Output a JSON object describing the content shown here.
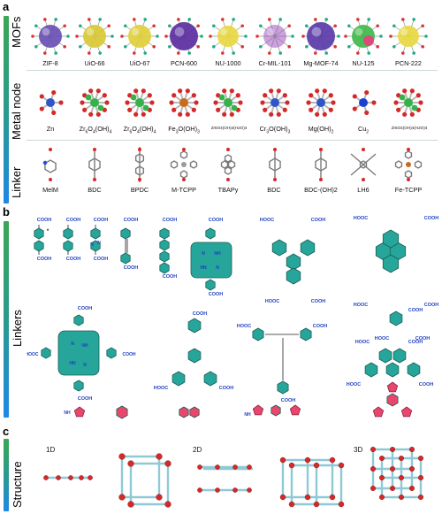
{
  "panels": {
    "a": {
      "letter": "a",
      "rows": [
        {
          "label": "MOFs"
        },
        {
          "label": "Metal node"
        },
        {
          "label": "Linker"
        }
      ]
    },
    "b": {
      "letter": "b",
      "label": "Linkers"
    },
    "c": {
      "letter": "c",
      "label": "Structure"
    }
  },
  "mofs": [
    "ZIF-8",
    "UiO-66",
    "UiO-67",
    "PCN-600",
    "NU-1000",
    "Cr-MIL-101",
    "Mg-MOF-74",
    "NU-125",
    "PCN-222"
  ],
  "metal_nodes": [
    {
      "main": "Zn",
      "sub1": "",
      "mid": "",
      "sub2": "",
      "tail": ""
    },
    {
      "main": "Zr",
      "sub1": "6",
      "mid": "O",
      "sub2": "4",
      "tail": "(OH)"
    },
    {
      "main": "Zr",
      "sub1": "6",
      "mid": "O",
      "sub2": "4",
      "tail": "(OH)"
    },
    {
      "main": "Fe",
      "sub1": "3",
      "mid": "O(OH)",
      "sub2": "3",
      "tail": ""
    },
    {
      "main": "Zr6O4(OH)4(H2O)4",
      "sub1": "",
      "mid": "",
      "sub2": "",
      "tail": ""
    },
    {
      "main": "Cr",
      "sub1": "3",
      "mid": "O(OH)",
      "sub2": "3",
      "tail": ""
    },
    {
      "main": "Mg(OH)",
      "sub1": "2",
      "mid": "",
      "sub2": "",
      "tail": ""
    },
    {
      "main": "Cu",
      "sub1": "2",
      "mid": "",
      "sub2": "",
      "tail": ""
    },
    {
      "main": "Zr6O4(OH)4(H2O)4",
      "sub1": "",
      "mid": "",
      "sub2": "",
      "tail": ""
    }
  ],
  "metal_node_tail_sub": [
    "",
    "4",
    "4",
    "",
    "",
    "",
    "",
    "",
    ""
  ],
  "linkers_top": [
    "MelM",
    "BDC",
    "BPDC",
    "M-TCPP",
    "TBAPy",
    "BDC",
    "BDC-(OH)2",
    "LH6",
    "Fe-TCPP"
  ],
  "chem": {
    "cooh": "COOH",
    "hooc": "HOOC",
    "n": "N",
    "nh": "NH",
    "hn": "HN",
    "star": "*"
  },
  "structures": [
    {
      "label": "1D"
    },
    {
      "label": "2D"
    },
    {
      "label": "3D"
    }
  ],
  "colors": {
    "teal": "#26a69a",
    "pink": "#e8476c",
    "red_ball": "#d62828",
    "blue_label": "#1f3fbf",
    "gradient_top": "#2e8b57",
    "gradient_bottom": "#1e88e5"
  }
}
